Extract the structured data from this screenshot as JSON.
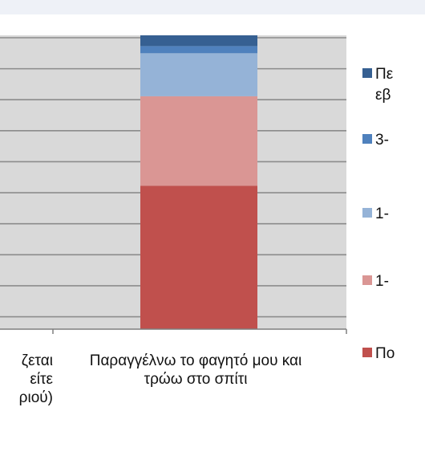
{
  "chart_data": {
    "type": "bar",
    "stacked": true,
    "categories": [
      "ζεται είτε ριού)",
      "Παραγγέλνω το φαγητό μου και τρώω στο σπίτι"
    ],
    "category_lines": [
      [
        "ζεται",
        "είτε",
        "ριού)"
      ],
      [
        "Παραγγέλνω το φαγητό μου και",
        "τρώω στο σπίτι"
      ]
    ],
    "series": [
      {
        "name": "Πο",
        "color": "#c0504d",
        "values": [
          null,
          40
        ]
      },
      {
        "name": "1-",
        "color": "#da9694",
        "values": [
          null,
          25
        ]
      },
      {
        "name": "1-",
        "color": "#95b3d7",
        "values": [
          null,
          12
        ]
      },
      {
        "name": "3-",
        "color": "#4f81bd",
        "values": [
          null,
          2
        ]
      },
      {
        "name": "Πε εβ",
        "color": "#366092",
        "values": [
          null,
          3
        ]
      }
    ],
    "legend_lines": [
      [
        "Πε",
        "εβ"
      ],
      [
        "3-"
      ],
      [
        "1-"
      ],
      [
        "1-"
      ],
      [
        "Πο"
      ]
    ],
    "ylim": [
      0,
      82
    ],
    "grid": true,
    "legend_position": "right"
  }
}
